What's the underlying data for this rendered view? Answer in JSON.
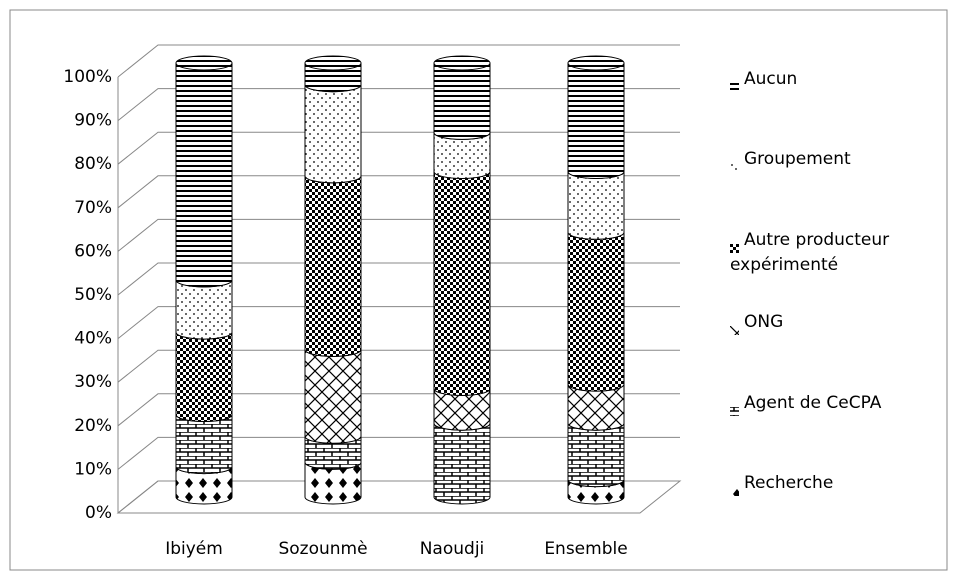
{
  "chart_data": {
    "type": "bar",
    "stacked": true,
    "categories": [
      "Ibiyém",
      "Sozounmè",
      "Naoudji",
      "Ensemble"
    ],
    "series": [
      {
        "name": "Recherche",
        "color": "#000000",
        "values": [
          7,
          8,
          0,
          4
        ]
      },
      {
        "name": "Agent de CeCPA",
        "color": "#000000",
        "values": [
          12,
          6,
          17,
          13
        ]
      },
      {
        "name": "ONG",
        "color": "#000000",
        "values": [
          0,
          20,
          8,
          9
        ]
      },
      {
        "name": "Autre producteur expérimenté",
        "color": "#000000",
        "values": [
          19,
          40,
          50,
          35
        ]
      },
      {
        "name": "Groupement",
        "color": "#000000",
        "values": [
          12,
          21,
          9,
          14
        ]
      },
      {
        "name": "Aucun",
        "color": "#000000",
        "values": [
          50,
          5,
          16,
          25
        ]
      }
    ],
    "ylim": [
      0,
      100
    ],
    "yticks": [
      {
        "value": 0,
        "label": "0%"
      },
      {
        "value": 10,
        "label": "10%"
      },
      {
        "value": 20,
        "label": "20%"
      },
      {
        "value": 30,
        "label": "30%"
      },
      {
        "value": 40,
        "label": "40%"
      },
      {
        "value": 50,
        "label": "50%"
      },
      {
        "value": 60,
        "label": "60%"
      },
      {
        "value": 70,
        "label": "70%"
      },
      {
        "value": 80,
        "label": "80%"
      },
      {
        "value": 90,
        "label": "90%"
      },
      {
        "value": 100,
        "label": "100%"
      }
    ],
    "grid": true,
    "legend": "right"
  }
}
